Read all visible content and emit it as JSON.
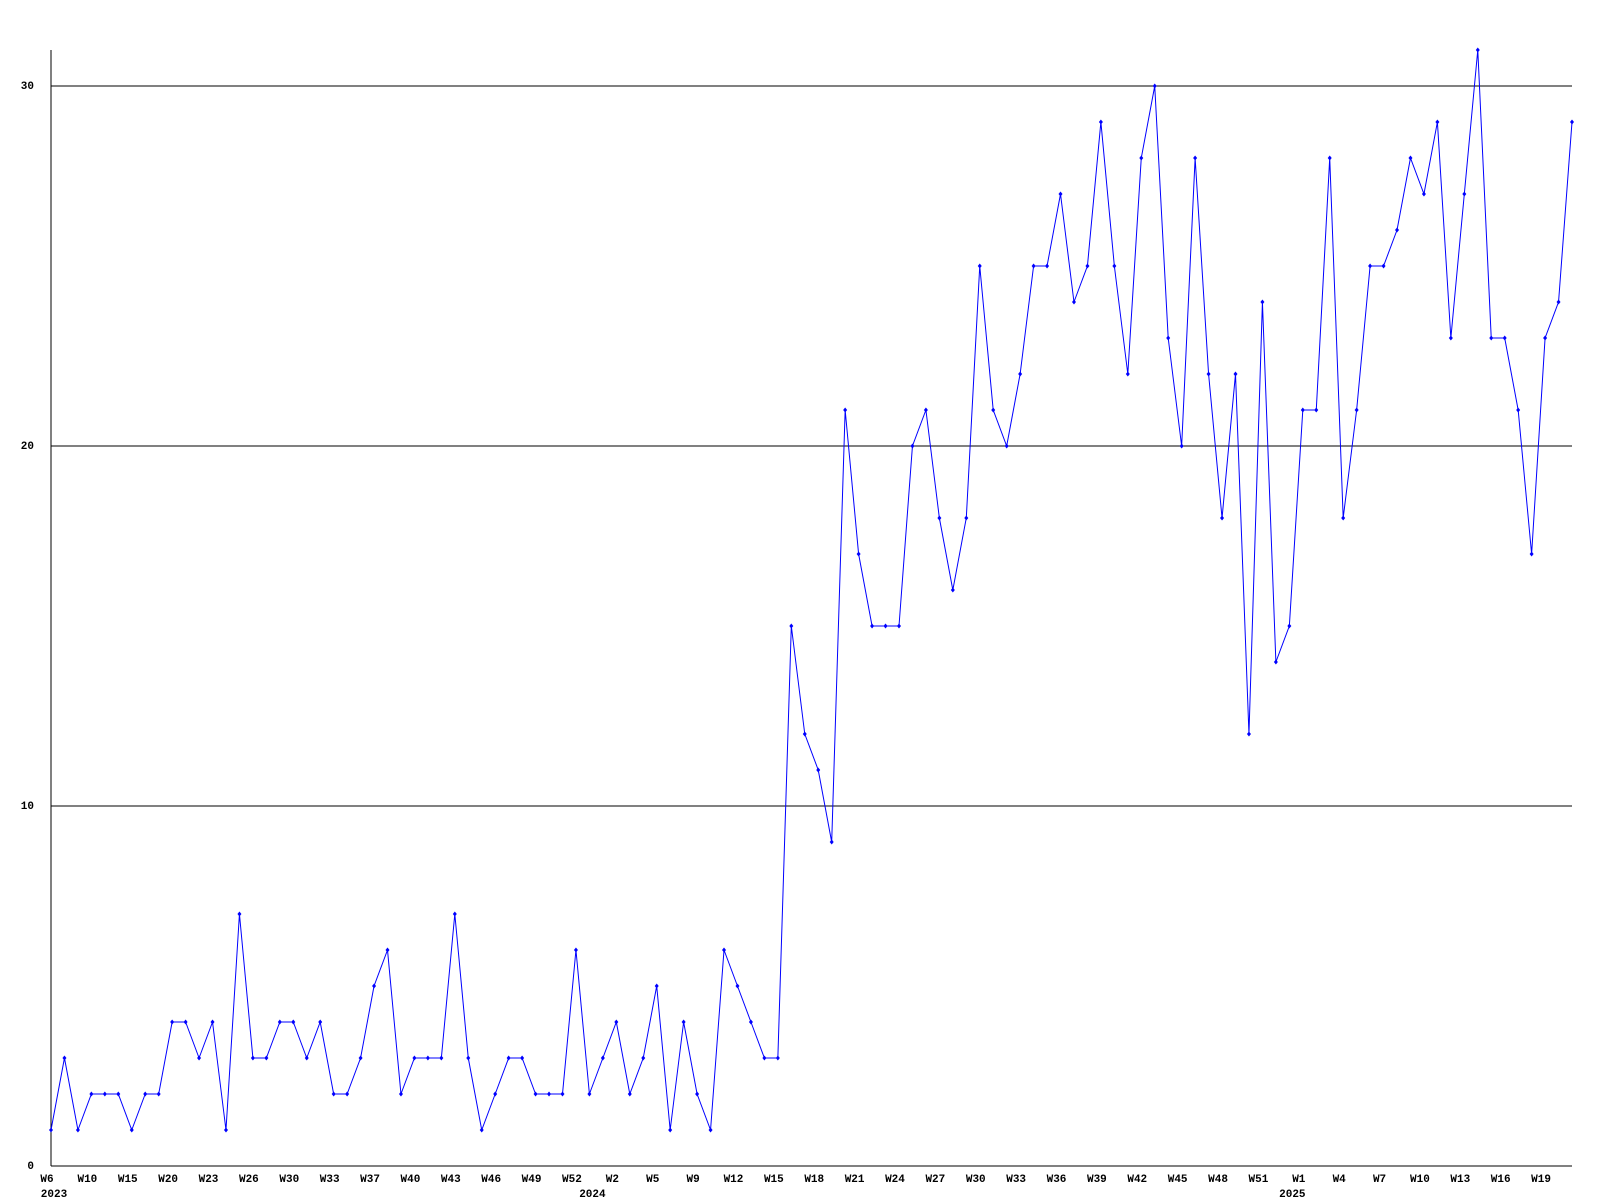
{
  "chart_data": {
    "type": "line",
    "categories": [
      "W6",
      null,
      null,
      "W10",
      null,
      null,
      "W15",
      null,
      null,
      "W20",
      null,
      null,
      "W23",
      null,
      null,
      "W26",
      null,
      null,
      "W30",
      null,
      null,
      "W33",
      null,
      null,
      "W37",
      null,
      null,
      "W40",
      null,
      null,
      "W43",
      null,
      null,
      "W46",
      null,
      null,
      "W49",
      null,
      null,
      "W52",
      null,
      null,
      "W2",
      null,
      null,
      "W5",
      null,
      null,
      "W9",
      null,
      null,
      "W12",
      null,
      null,
      "W15",
      null,
      null,
      "W18",
      null,
      null,
      "W21",
      null,
      null,
      "W24",
      null,
      null,
      "W27",
      null,
      null,
      "W30",
      null,
      null,
      "W33",
      null,
      null,
      "W36",
      null,
      null,
      "W39",
      null,
      null,
      "W42",
      null,
      null,
      "W45",
      null,
      null,
      "W48",
      null,
      null,
      "W51",
      null,
      null,
      "W1",
      null,
      null,
      "W4",
      null,
      null,
      "W7",
      null,
      null,
      "W10",
      null,
      null,
      "W13",
      null,
      null,
      "W16",
      null,
      null,
      "W19",
      null,
      null
    ],
    "year_labels": [
      "2023",
      null,
      null,
      null,
      null,
      null,
      null,
      null,
      null,
      null,
      null,
      null,
      null,
      null,
      null,
      null,
      null,
      null,
      null,
      null,
      null,
      null,
      null,
      null,
      null,
      null,
      null,
      null,
      null,
      null,
      null,
      null,
      null,
      null,
      null,
      null,
      null,
      null,
      null,
      null,
      "2024",
      null,
      null,
      null,
      null,
      null,
      null,
      null,
      null,
      null,
      null,
      null,
      null,
      null,
      null,
      null,
      null,
      null,
      null,
      null,
      null,
      null,
      null,
      null,
      null,
      null,
      null,
      null,
      null,
      null,
      null,
      null,
      null,
      null,
      null,
      null,
      null,
      null,
      null,
      null,
      null,
      null,
      null,
      null,
      null,
      null,
      null,
      null,
      null,
      null,
      null,
      null,
      "2025",
      null,
      null,
      null,
      null,
      null,
      null,
      null,
      null,
      null,
      null,
      null,
      null,
      null,
      null,
      null,
      null,
      null,
      null,
      null,
      null,
      null
    ],
    "values": [
      1,
      3,
      1,
      2,
      2,
      2,
      1,
      2,
      2,
      4,
      4,
      3,
      4,
      1,
      7,
      3,
      3,
      4,
      4,
      3,
      4,
      2,
      2,
      3,
      5,
      6,
      2,
      3,
      3,
      3,
      7,
      3,
      1,
      2,
      3,
      3,
      2,
      2,
      2,
      6,
      2,
      3,
      4,
      2,
      3,
      5,
      1,
      4,
      2,
      1,
      6,
      5,
      4,
      3,
      3,
      15,
      12,
      11,
      9,
      21,
      17,
      15,
      15,
      15,
      20,
      21,
      18,
      16,
      18,
      25,
      21,
      20,
      22,
      25,
      25,
      27,
      24,
      25,
      29,
      25,
      22,
      28,
      30,
      23,
      20,
      28,
      22,
      18,
      22,
      12,
      24,
      14,
      15,
      21,
      21,
      28,
      18,
      21,
      25,
      25,
      26,
      28,
      27,
      29,
      23,
      27,
      31,
      23,
      23,
      21,
      17,
      23,
      24,
      29
    ],
    "color": "#0000ff",
    "ylim": [
      0,
      31
    ],
    "yticks": [
      0,
      10,
      20,
      30
    ],
    "grid": true
  }
}
